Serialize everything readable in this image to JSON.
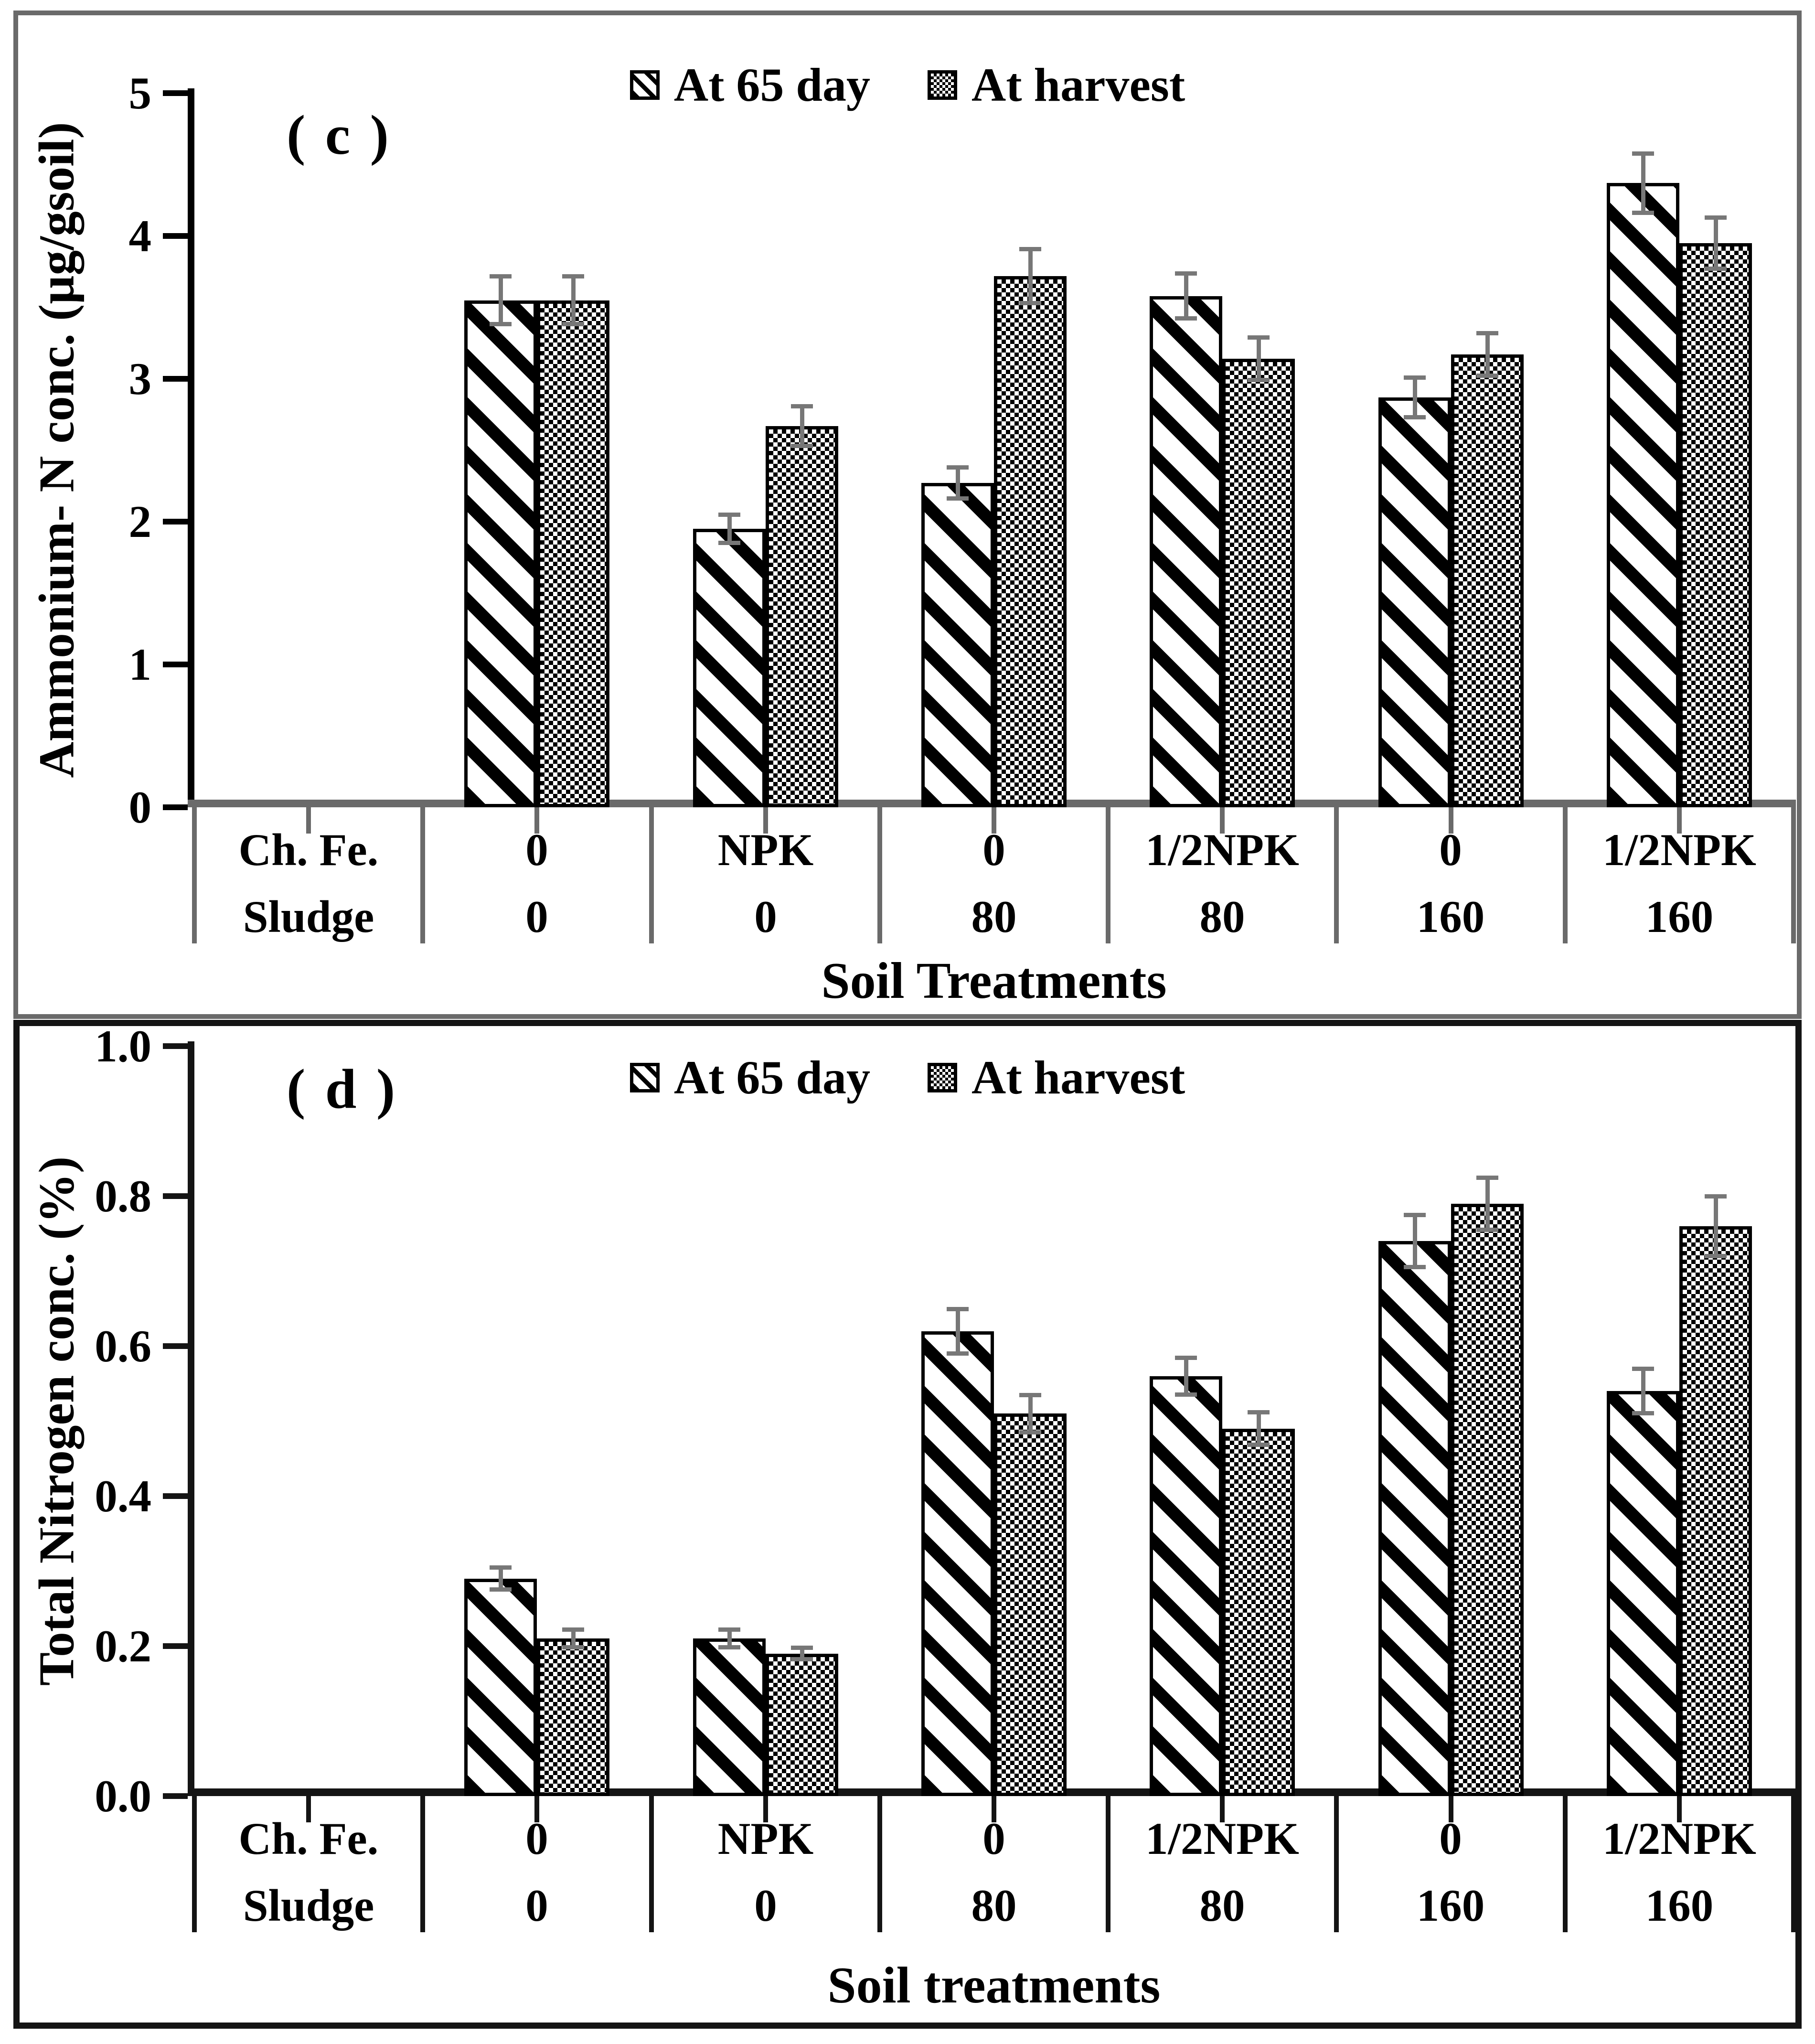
{
  "figure": {
    "background": "#ffffff",
    "panels": [
      "c",
      "d"
    ]
  },
  "colors": {
    "bar_fill": "#ffffff",
    "bar_stroke": "#000000",
    "error_bar": "#777777",
    "panel_c_frame": "#6a6a6a",
    "panel_d_frame": "#141414",
    "chart_c_x_axis": "#6a6a6a",
    "chart_c_y_axis": "#000000",
    "chart_d_axes": "#141414",
    "text": "#000000"
  },
  "legend": {
    "items": [
      {
        "label": "At 65 day",
        "pattern": "diagonal-hatch"
      },
      {
        "label": "At harvest",
        "pattern": "checkerboard"
      }
    ]
  },
  "chart_data": [
    {
      "type": "bar",
      "panel_label": "( c )",
      "ylabel": "Ammonium- N conc. (µg/gsoil)",
      "xlabel": "Soil Treatments",
      "ylim": [
        0,
        5
      ],
      "ytick_labels": [
        "5",
        "4",
        "3",
        "2",
        "1",
        "0"
      ],
      "grid": false,
      "legend_position": "top-center",
      "x_header": {
        "row1_label": "Ch. Fe.",
        "row2_label": "Sludge",
        "row1_values": [
          "0",
          "NPK",
          "0",
          "1/2NPK",
          "0",
          "1/2NPK"
        ],
        "row2_values": [
          "0",
          "0",
          "80",
          "80",
          "160",
          "160"
        ]
      },
      "series": [
        {
          "name": "At 65 day",
          "pattern": "diagonal-hatch",
          "values": [
            3.55,
            1.95,
            2.27,
            3.58,
            2.87,
            4.37
          ],
          "errors": [
            0.17,
            0.1,
            0.11,
            0.16,
            0.14,
            0.21
          ]
        },
        {
          "name": "At harvest",
          "pattern": "checkerboard",
          "values": [
            3.55,
            2.67,
            3.72,
            3.14,
            3.17,
            3.95
          ],
          "errors": [
            0.17,
            0.14,
            0.19,
            0.15,
            0.15,
            0.18
          ]
        }
      ]
    },
    {
      "type": "bar",
      "panel_label": "( d )",
      "ylabel": "Total Nitrogen conc. (%)",
      "xlabel": "Soil treatments",
      "ylim": [
        0,
        1.0
      ],
      "ytick_labels": [
        "1.0",
        "0.8",
        "0.6",
        "0.4",
        "0.2",
        "0.0"
      ],
      "grid": false,
      "legend_position": "top-center",
      "x_header": {
        "row1_label": "Ch. Fe.",
        "row2_label": "Sludge",
        "row1_values": [
          "0",
          "NPK",
          "0",
          "1/2NPK",
          "0",
          "1/2NPK"
        ],
        "row2_values": [
          "0",
          "0",
          "80",
          "80",
          "160",
          "160"
        ]
      },
      "series": [
        {
          "name": "At 65 day",
          "pattern": "diagonal-hatch",
          "values": [
            0.29,
            0.21,
            0.62,
            0.56,
            0.74,
            0.54
          ],
          "errors": [
            0.015,
            0.012,
            0.03,
            0.025,
            0.035,
            0.03
          ]
        },
        {
          "name": "At harvest",
          "pattern": "checkerboard",
          "values": [
            0.21,
            0.19,
            0.51,
            0.49,
            0.79,
            0.76
          ],
          "errors": [
            0.012,
            0.008,
            0.025,
            0.022,
            0.035,
            0.04
          ]
        }
      ]
    }
  ]
}
